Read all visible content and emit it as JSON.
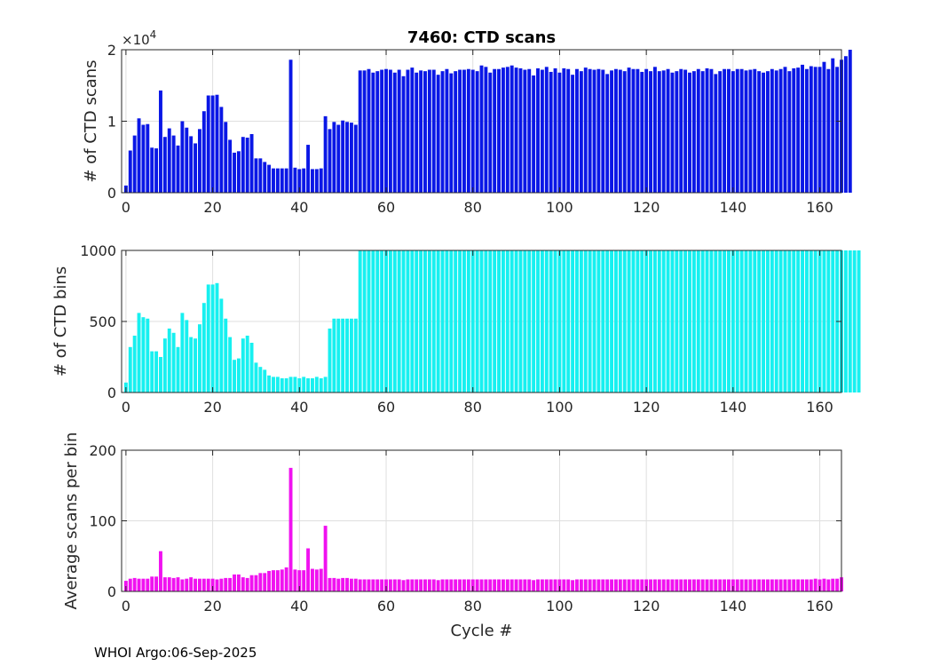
{
  "figure": {
    "footer": "WHOI Argo:06-Sep-2025"
  },
  "chart_data": [
    {
      "type": "bar",
      "title": "7460: CTD scans",
      "xlabel": "",
      "ylabel": "# of CTD scans",
      "exponent_label": "×10",
      "exponent_power": "4",
      "xlim": [
        -1,
        165
      ],
      "ylim": [
        0,
        20000
      ],
      "xticks": [
        0,
        20,
        40,
        60,
        80,
        100,
        120,
        140,
        160
      ],
      "yticks": [
        0,
        10000,
        20000
      ],
      "ytick_labels": [
        "0",
        "1",
        "2"
      ],
      "grid": true,
      "color": "#0a17e6",
      "x_start": 0,
      "values": [
        1000,
        5900,
        8000,
        10400,
        9500,
        9600,
        6300,
        6200,
        14300,
        7800,
        9000,
        8000,
        6600,
        10000,
        9100,
        7900,
        6900,
        8900,
        11400,
        13600,
        13600,
        13700,
        12000,
        9900,
        7400,
        5600,
        5800,
        7800,
        7700,
        8200,
        4800,
        4800,
        4300,
        3900,
        3400,
        3400,
        3400,
        3400,
        18600,
        3500,
        3300,
        3400,
        6700,
        3300,
        3300,
        3400,
        10700,
        8900,
        9900,
        9500,
        10100,
        9900,
        9800,
        9500,
        17100,
        17100,
        17300,
        16800,
        17000,
        17200,
        17300,
        17200,
        16800,
        17200,
        16300,
        17200,
        17500,
        16800,
        17100,
        17000,
        17200,
        17200,
        16500,
        17000,
        17300,
        16700,
        17000,
        17200,
        17200,
        17300,
        17200,
        17000,
        17800,
        17600,
        16800,
        17300,
        17300,
        17500,
        17600,
        17800,
        17500,
        17400,
        17200,
        17300,
        16400,
        17400,
        17200,
        17600,
        16900,
        17400,
        16800,
        17400,
        17300,
        16500,
        17300,
        17000,
        17500,
        17300,
        17200,
        17300,
        17200,
        16600,
        17100,
        17300,
        17200,
        17000,
        17500,
        17300,
        17300,
        16900,
        17300,
        17000,
        17600,
        17000,
        17100,
        17300,
        16800,
        17000,
        17300,
        17200,
        16800,
        17000,
        17300,
        17000,
        17400,
        17300,
        16600,
        17000,
        17300,
        17300,
        17000,
        17300,
        17300,
        17100,
        17200,
        17300,
        17000,
        16800,
        17000,
        17300,
        17100,
        17300,
        17600,
        17000,
        17400,
        17500,
        17900,
        17300,
        17700,
        17600,
        17600,
        18300,
        17300,
        18800,
        17600,
        18600,
        19100,
        20500
      ]
    },
    {
      "type": "bar",
      "title": "",
      "xlabel": "",
      "ylabel": "# of CTD bins",
      "xlim": [
        -1,
        165
      ],
      "ylim": [
        0,
        1000
      ],
      "xticks": [
        0,
        20,
        40,
        60,
        80,
        100,
        120,
        140,
        160
      ],
      "yticks": [
        0,
        500,
        1000
      ],
      "ytick_labels": [
        "0",
        "500",
        "1000"
      ],
      "grid": true,
      "color": "#17f0f0",
      "x_start": 0,
      "values": [
        70,
        320,
        400,
        560,
        530,
        520,
        290,
        290,
        250,
        380,
        450,
        420,
        320,
        560,
        510,
        390,
        380,
        480,
        630,
        760,
        760,
        770,
        660,
        520,
        390,
        230,
        240,
        380,
        400,
        350,
        210,
        180,
        160,
        120,
        110,
        110,
        100,
        100,
        110,
        110,
        100,
        110,
        100,
        100,
        110,
        100,
        110,
        450,
        520,
        520,
        520,
        520,
        520,
        520,
        1000,
        1000,
        1000,
        1000,
        1000,
        1000,
        1000,
        1000,
        1000,
        1000,
        1000,
        1000,
        1000,
        1000,
        1000,
        1000,
        1000,
        1000,
        1000,
        1000,
        1000,
        1000,
        1000,
        1000,
        1000,
        1000,
        1000,
        1000,
        1000,
        1000,
        1000,
        1000,
        1000,
        1000,
        1000,
        1000,
        1000,
        1000,
        1000,
        1000,
        1000,
        1000,
        1000,
        1000,
        1000,
        1000,
        1000,
        1000,
        1000,
        1000,
        1000,
        1000,
        1000,
        1000,
        1000,
        1000,
        1000,
        1000,
        1000,
        1000,
        1000,
        1000,
        1000,
        1000,
        1000,
        1000,
        1000,
        1000,
        1000,
        1000,
        1000,
        1000,
        1000,
        1000,
        1000,
        1000,
        1000,
        1000,
        1000,
        1000,
        1000,
        1000,
        1000,
        1000,
        1000,
        1000,
        1000,
        1000,
        1000,
        1000,
        1000,
        1000,
        1000,
        1000,
        1000,
        1000,
        1000,
        1000,
        1000,
        1000,
        1000,
        1000,
        1000,
        1000,
        1000,
        1000,
        1000,
        1000,
        1000,
        1000,
        1000,
        1000,
        1000,
        1000,
        1000,
        1000
      ]
    },
    {
      "type": "bar",
      "title": "",
      "xlabel": "Cycle #",
      "ylabel": "Average scans per bin",
      "xlim": [
        -1,
        165
      ],
      "ylim": [
        0,
        200
      ],
      "xticks": [
        0,
        20,
        40,
        60,
        80,
        100,
        120,
        140,
        160
      ],
      "yticks": [
        0,
        100,
        200
      ],
      "ytick_labels": [
        "0",
        "100",
        "200"
      ],
      "grid": true,
      "color": "#f012f0",
      "x_start": 0,
      "values": [
        15,
        18,
        19,
        18,
        18,
        18,
        21,
        21,
        57,
        20,
        20,
        19,
        20,
        17,
        18,
        20,
        18,
        18,
        18,
        18,
        18,
        17,
        18,
        19,
        19,
        24,
        24,
        20,
        19,
        23,
        23,
        26,
        26,
        29,
        30,
        30,
        31,
        34,
        175,
        31,
        30,
        30,
        61,
        32,
        31,
        32,
        93,
        19,
        19,
        18,
        19,
        19,
        18,
        18,
        17,
        17,
        17,
        17,
        17,
        17,
        17,
        17,
        17,
        17,
        16,
        17,
        17,
        17,
        17,
        17,
        17,
        17,
        16,
        17,
        17,
        17,
        17,
        17,
        17,
        17,
        17,
        17,
        17,
        17,
        17,
        17,
        17,
        17,
        17,
        17,
        17,
        17,
        17,
        17,
        16,
        17,
        17,
        17,
        17,
        17,
        17,
        17,
        17,
        16,
        17,
        17,
        17,
        17,
        17,
        17,
        17,
        17,
        17,
        17,
        17,
        17,
        17,
        17,
        17,
        17,
        17,
        17,
        17,
        17,
        17,
        17,
        17,
        17,
        17,
        17,
        17,
        17,
        17,
        17,
        17,
        17,
        17,
        17,
        17,
        17,
        17,
        17,
        17,
        17,
        17,
        17,
        17,
        17,
        17,
        17,
        17,
        17,
        17,
        17,
        17,
        17,
        17,
        17,
        17,
        18,
        17,
        18,
        17,
        18,
        18,
        20
      ]
    }
  ]
}
